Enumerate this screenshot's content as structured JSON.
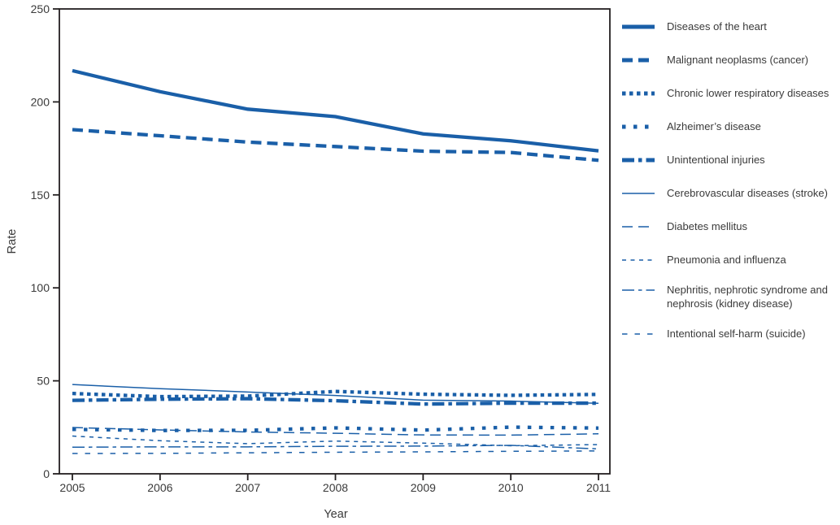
{
  "chart_data": {
    "type": "line",
    "x": [
      2005,
      2006,
      2007,
      2008,
      2009,
      2010,
      2011
    ],
    "xlabel": "Year",
    "ylabel": "Rate",
    "ylim": [
      0,
      250
    ],
    "yticks": [
      0,
      50,
      100,
      150,
      200,
      250
    ],
    "grid": false,
    "legend_position": "right",
    "line_color": "#1a5fa8",
    "axis_color": "#231f20",
    "text_color": "#3a3a3a",
    "series": [
      {
        "name": "Diseases of the heart",
        "weight": "thick",
        "dash": "solid",
        "values": [
          216.8,
          205.5,
          196.1,
          192.1,
          182.8,
          179.1,
          173.7
        ]
      },
      {
        "name": "Malignant neoplasms (cancer)",
        "weight": "thick",
        "dash": "long-dash",
        "values": [
          185.1,
          181.8,
          178.4,
          176.0,
          173.5,
          172.8,
          168.6
        ]
      },
      {
        "name": "Chronic lower respiratory diseases",
        "weight": "thick",
        "dash": "dot",
        "values": [
          43.2,
          41.5,
          41.8,
          44.3,
          42.8,
          42.2,
          42.7
        ]
      },
      {
        "name": "Alzheimer’s disease",
        "weight": "thick",
        "dash": "sparse-dot",
        "values": [
          23.9,
          23.3,
          23.4,
          24.7,
          23.5,
          25.1,
          24.6
        ]
      },
      {
        "name": "Unintentional injuries",
        "weight": "thick",
        "dash": "dash-dot",
        "values": [
          39.5,
          40.1,
          40.4,
          39.3,
          37.5,
          38.0,
          38.0
        ]
      },
      {
        "name": "Cerebrovascular diseases (stroke)",
        "weight": "thin",
        "dash": "solid",
        "values": [
          48.0,
          45.8,
          44.0,
          42.1,
          39.6,
          39.1,
          37.9
        ]
      },
      {
        "name": "Diabetes mellitus",
        "weight": "thin",
        "dash": "long-dash",
        "values": [
          24.9,
          23.6,
          22.5,
          21.8,
          20.9,
          20.8,
          21.5
        ]
      },
      {
        "name": "Pneumonia and influenza",
        "weight": "thin",
        "dash": "short-dash",
        "values": [
          20.3,
          17.8,
          16.2,
          17.6,
          16.5,
          15.1,
          15.7
        ]
      },
      {
        "name": "Nephritis, nephrotic syndrome and nephrosis (kidney disease)",
        "weight": "thin",
        "dash": "dash-dot",
        "values": [
          14.3,
          14.5,
          14.5,
          14.8,
          14.9,
          15.3,
          13.4
        ]
      },
      {
        "name": "Intentional self-harm (suicide)",
        "weight": "thin",
        "dash": "wide-dash",
        "values": [
          10.9,
          11.0,
          11.3,
          11.6,
          11.8,
          12.1,
          12.3
        ]
      }
    ]
  }
}
